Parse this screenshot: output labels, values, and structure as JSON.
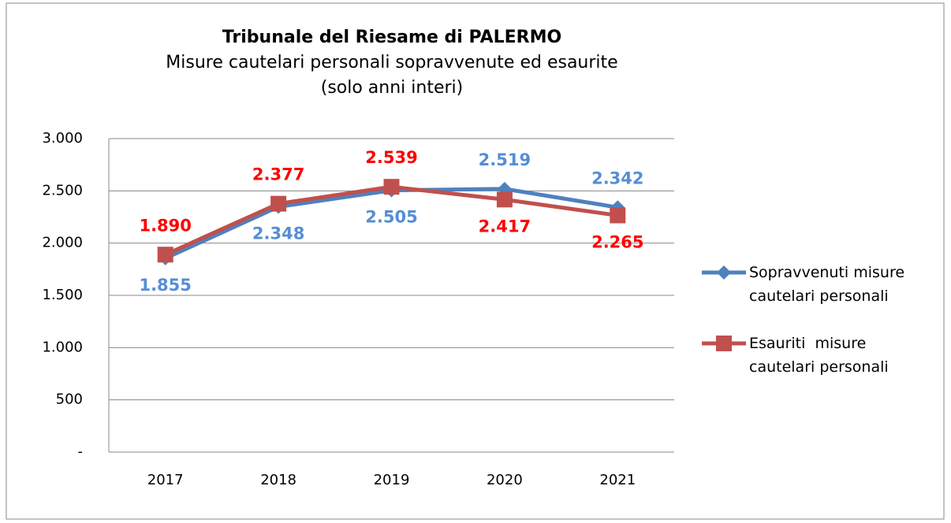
{
  "chart_data": {
    "type": "line",
    "title": "Tribunale del Riesame di PALERMO",
    "subtitle": [
      "Misure cautelari personali sopravvenute ed esaurite",
      "(solo anni interi)"
    ],
    "categories": [
      "2017",
      "2018",
      "2019",
      "2020",
      "2021"
    ],
    "series": [
      {
        "name": "Sopravvenuti misure cautelari personali",
        "color": "#4f81bd",
        "label_color": "#558ed5",
        "marker": "diamond",
        "values": [
          1855,
          2348,
          2505,
          2519,
          2342
        ],
        "value_labels": [
          "1.855",
          "2.348",
          "2.505",
          "2.519",
          "2.342"
        ]
      },
      {
        "name": "Esauriti  misure cautelari personali",
        "color": "#c0504d",
        "label_color": "#ff0000",
        "marker": "square",
        "values": [
          1890,
          2377,
          2539,
          2417,
          2265
        ],
        "value_labels": [
          "1.890",
          "2.377",
          "2.539",
          "2.417",
          "2.265"
        ]
      }
    ],
    "ylim": [
      0,
      3000
    ],
    "yticks": [
      {
        "value": 0,
        "label": "-"
      },
      500,
      {
        "value": 1000,
        "label": "1.000"
      },
      {
        "value": 1500,
        "label": "1.500"
      },
      {
        "value": 2000,
        "label": "2.000"
      },
      {
        "value": 2500,
        "label": "2.500"
      },
      {
        "value": 3000,
        "label": "3.000"
      }
    ],
    "grid": true,
    "legend": "right"
  }
}
